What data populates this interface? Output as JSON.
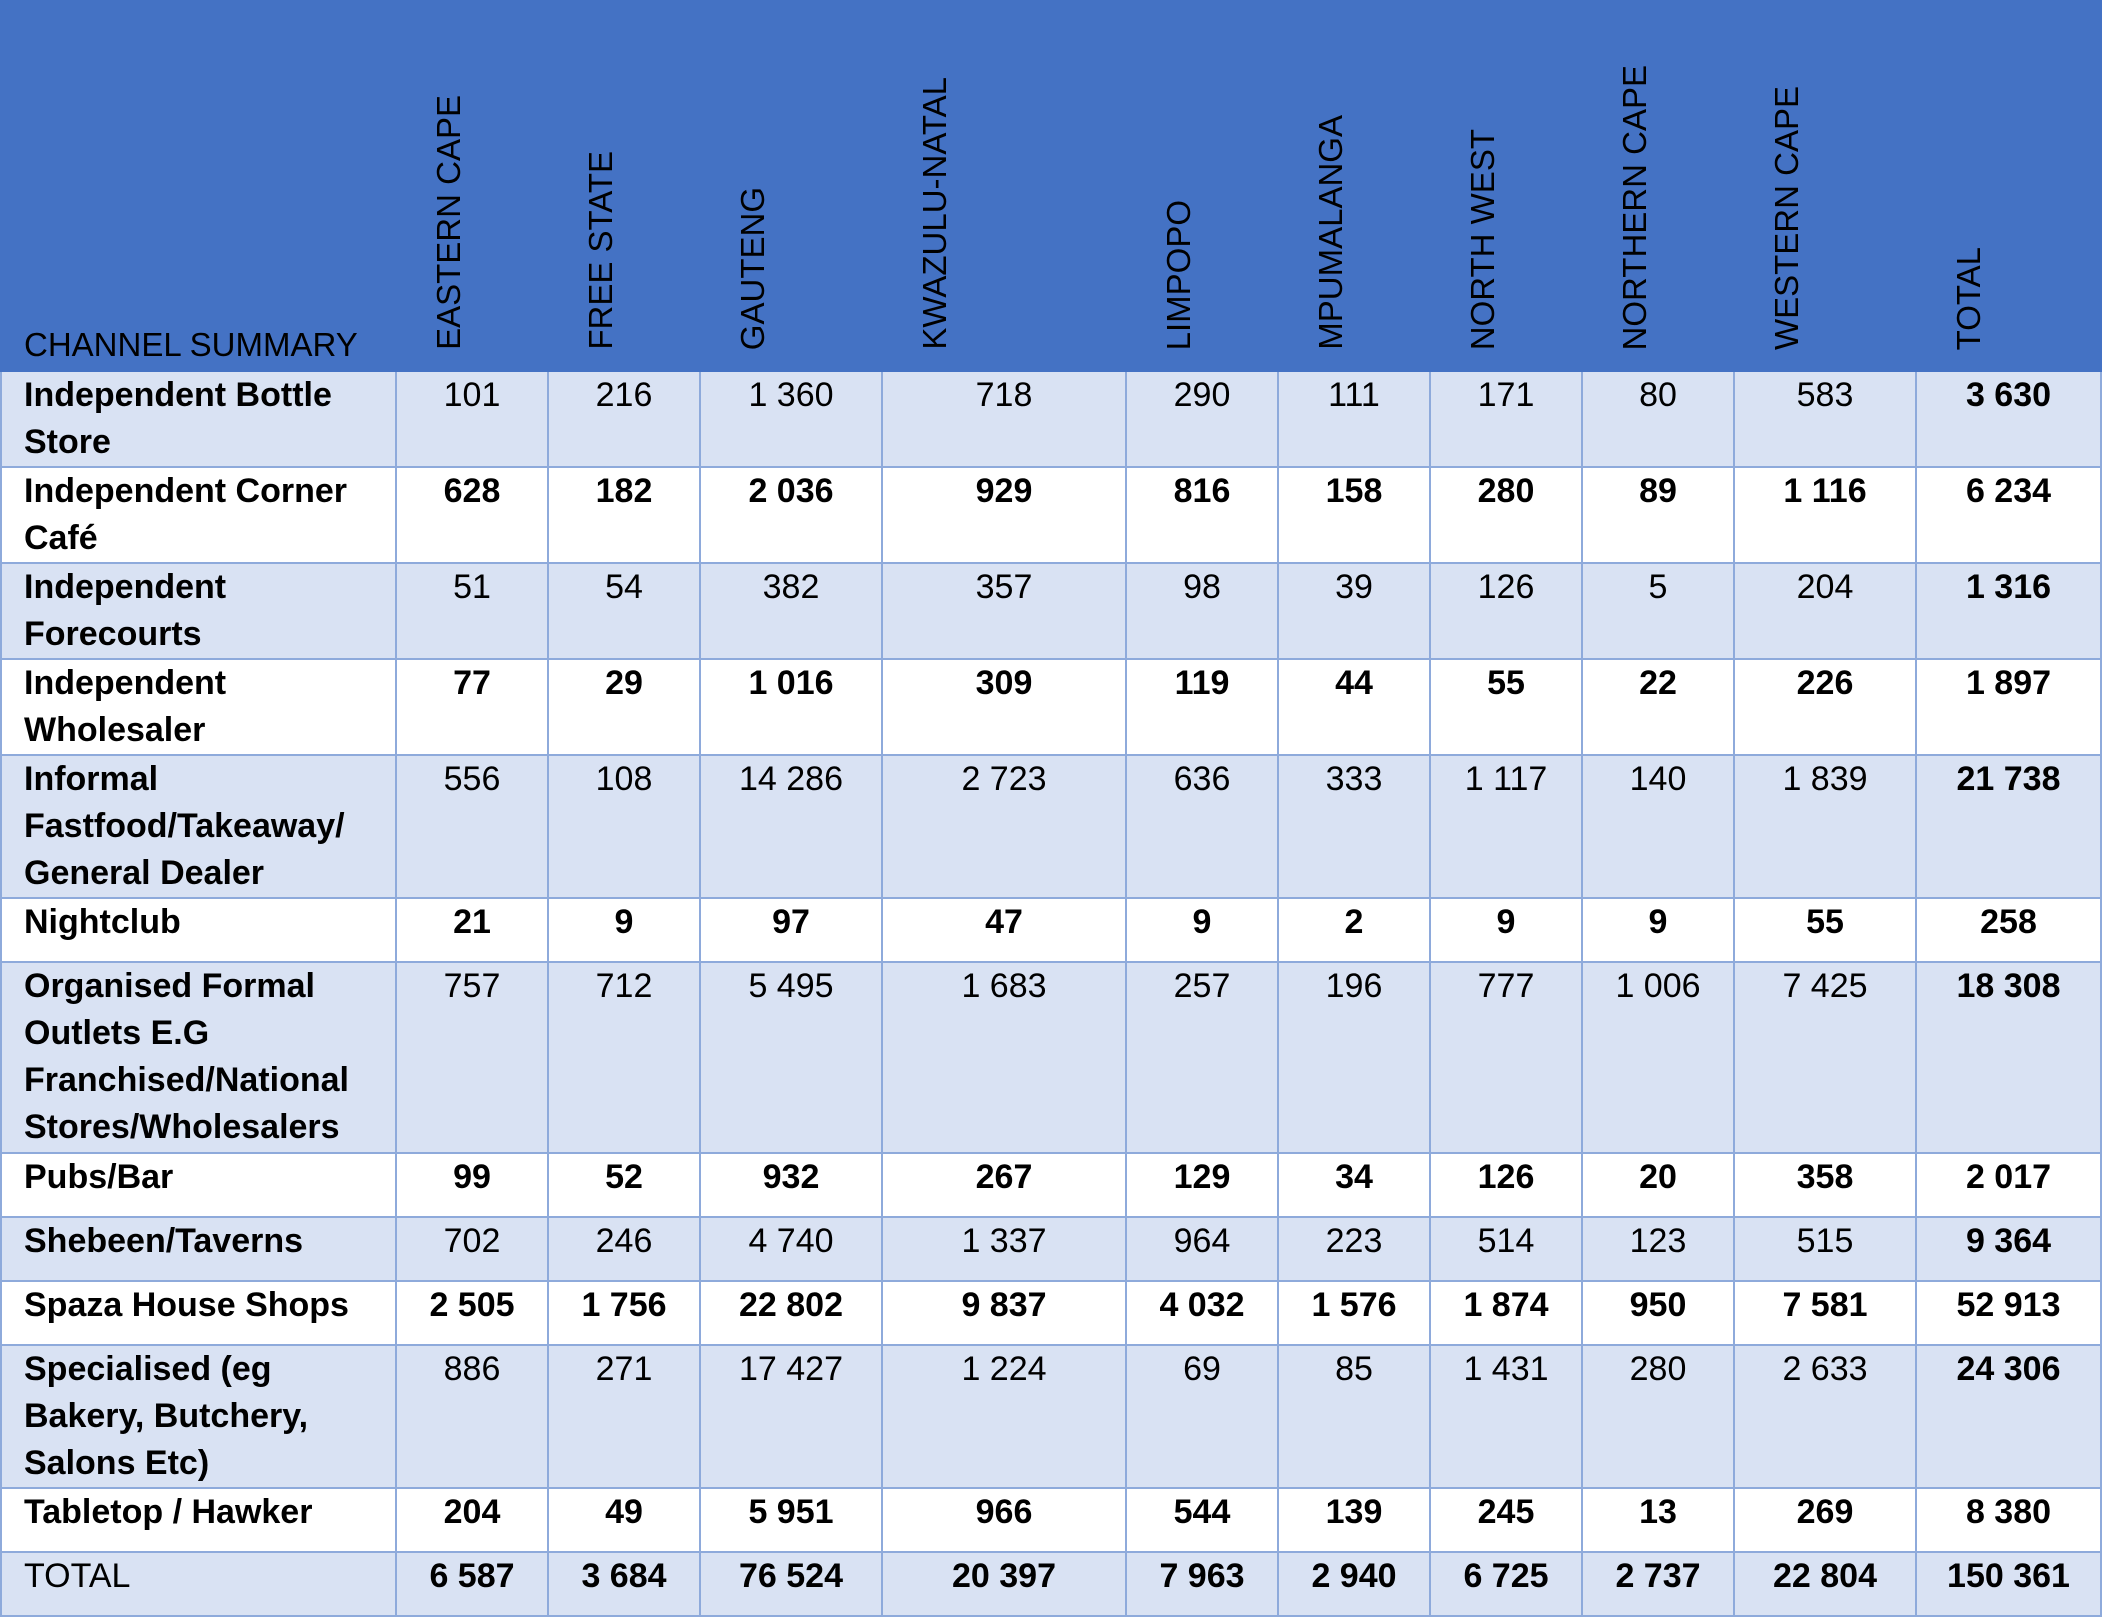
{
  "table": {
    "corner_label": "CHANNEL SUMMARY",
    "columns": [
      "EASTERN CAPE",
      "FREE STATE",
      "GAUTENG",
      "KWAZULU-NATAL",
      "LIMPOPO",
      "MPUMALANGA",
      "NORTH WEST",
      "NORTHERN CAPE",
      "WESTERN CAPE",
      "TOTAL"
    ],
    "rows": [
      {
        "label": "Independent Bottle Store",
        "values": [
          "101",
          "216",
          "1 360",
          "718",
          "290",
          "111",
          "171",
          "80",
          "583"
        ],
        "total": "3 630"
      },
      {
        "label": "Independent Corner Café",
        "values": [
          "628",
          "182",
          "2 036",
          "929",
          "816",
          "158",
          "280",
          "89",
          "1 116"
        ],
        "total": "6 234"
      },
      {
        "label": "Independent Forecourts",
        "values": [
          "51",
          "54",
          "382",
          "357",
          "98",
          "39",
          "126",
          "5",
          "204"
        ],
        "total": "1 316"
      },
      {
        "label": "Independent Wholesaler",
        "values": [
          "77",
          "29",
          "1 016",
          "309",
          "119",
          "44",
          "55",
          "22",
          "226"
        ],
        "total": "1 897"
      },
      {
        "label": "Informal Fastfood/Takeaway/ General Dealer",
        "values": [
          "556",
          "108",
          "14 286",
          "2 723",
          "636",
          "333",
          "1 117",
          "140",
          "1 839"
        ],
        "total": "21 738"
      },
      {
        "label": "Nightclub",
        "values": [
          "21",
          "9",
          "97",
          "47",
          "9",
          "2",
          "9",
          "9",
          "55"
        ],
        "total": "258"
      },
      {
        "label": "Organised Formal Outlets E.G Franchised/National Stores/Wholesalers",
        "values": [
          "757",
          "712",
          "5 495",
          "1 683",
          "257",
          "196",
          "777",
          "1 006",
          "7 425"
        ],
        "total": "18 308"
      },
      {
        "label": "Pubs/Bar",
        "values": [
          "99",
          "52",
          "932",
          "267",
          "129",
          "34",
          "126",
          "20",
          "358"
        ],
        "total": "2 017"
      },
      {
        "label": "Shebeen/Taverns",
        "values": [
          "702",
          "246",
          "4 740",
          "1 337",
          "964",
          "223",
          "514",
          "123",
          "515"
        ],
        "total": "9 364"
      },
      {
        "label": "Spaza House Shops",
        "values": [
          "2 505",
          "1 756",
          "22 802",
          "9 837",
          "4 032",
          "1 576",
          "1 874",
          "950",
          "7 581"
        ],
        "total": "52 913"
      },
      {
        "label": "Specialised (eg Bakery, Butchery, Salons Etc)",
        "values": [
          "886",
          "271",
          "17 427",
          "1 224",
          "69",
          "85",
          "1 431",
          "280",
          "2 633"
        ],
        "total": "24 306"
      },
      {
        "label": "Tabletop / Hawker",
        "values": [
          "204",
          "49",
          "5 951",
          "966",
          "544",
          "139",
          "245",
          "13",
          "269"
        ],
        "total": "8 380"
      }
    ],
    "total_row": {
      "label": "TOTAL",
      "values": [
        "6 587",
        "3 684",
        "76 524",
        "20 397",
        "7 963",
        "2 940",
        "6 725",
        "2 737",
        "22 804"
      ],
      "total": "150 361"
    }
  },
  "colors": {
    "header_bg": "#4472c4",
    "band_bg": "#d9e2f3",
    "border": "#8eaadb"
  }
}
